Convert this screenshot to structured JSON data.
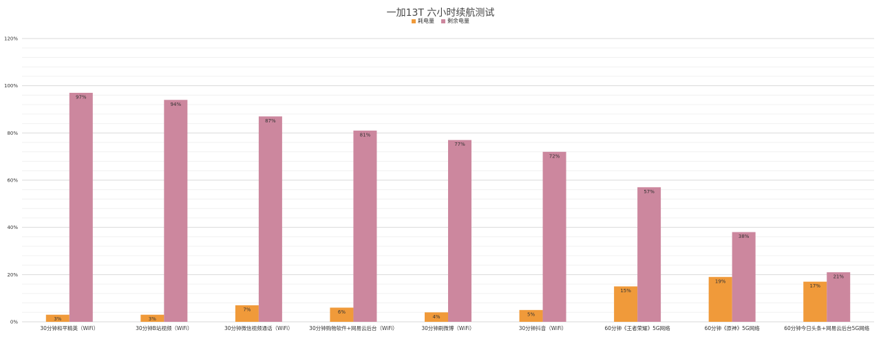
{
  "chart_data": {
    "type": "bar",
    "title": "一加13T 六小时续航测试",
    "categories": [
      "30分钟和平精英（WiFi）",
      "30分钟B站视频（WiFi）",
      "30分钟微信视频通话（WiFi）",
      "30分钟购物软件+网易云后台（WiFi）",
      "30分钟刷微博（WiFi）",
      "30分钟抖音（WiFi）",
      "60分钟《王者荣耀》5G网络",
      "60分钟《原神》5G网络",
      "60分钟今日头条+网易云后台5G网络"
    ],
    "series": [
      {
        "name": "耗电量",
        "color": "#f09a3a",
        "values": [
          3,
          3,
          7,
          6,
          4,
          5,
          15,
          19,
          17
        ],
        "labels": [
          "3%",
          "3%",
          "7%",
          "6%",
          "4%",
          "5%",
          "15%",
          "19%",
          "17%"
        ]
      },
      {
        "name": "剩余电量",
        "color": "#cc879e",
        "values": [
          97,
          94,
          87,
          81,
          77,
          72,
          57,
          38,
          21
        ],
        "labels": [
          "97%",
          "94%",
          "87%",
          "81%",
          "77%",
          "72%",
          "57%",
          "38%",
          "21%"
        ]
      }
    ],
    "ylim": [
      0,
      120
    ],
    "yticks": [
      0,
      20,
      40,
      60,
      80,
      100,
      120
    ],
    "ytick_labels": [
      "0%",
      "20%",
      "40%",
      "60%",
      "80%",
      "100%",
      "120%"
    ],
    "grid": true,
    "legend_position": "top-center"
  }
}
